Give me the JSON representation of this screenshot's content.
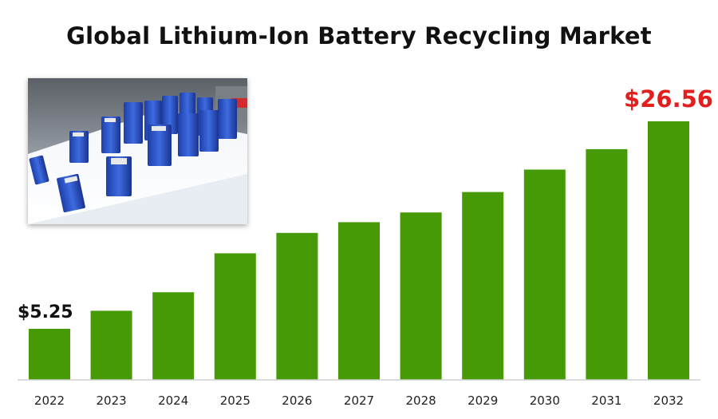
{
  "colors": {
    "bar": "#459a05",
    "axis": "#d0d0d0",
    "highlight_label": "#e01f1f",
    "first_label": "#111111"
  },
  "chart_data": {
    "type": "bar",
    "title": "Global Lithium-Ion Battery Recycling Market",
    "categories": [
      "2022",
      "2023",
      "2024",
      "2025",
      "2026",
      "2027",
      "2028",
      "2029",
      "2030",
      "2031",
      "2032"
    ],
    "values": [
      5.25,
      7.1,
      9.0,
      13.0,
      15.1,
      16.2,
      17.2,
      19.3,
      21.6,
      23.7,
      26.56
    ],
    "data_labels": [
      {
        "index": 0,
        "text": "$5.25"
      },
      {
        "index": 10,
        "text": "$26.56"
      }
    ],
    "xlabel": "",
    "ylabel": "",
    "ylim": [
      0,
      28
    ],
    "grid": false,
    "legend": "none"
  },
  "image": {
    "description_icon": "battery-cells-photo-icon"
  }
}
